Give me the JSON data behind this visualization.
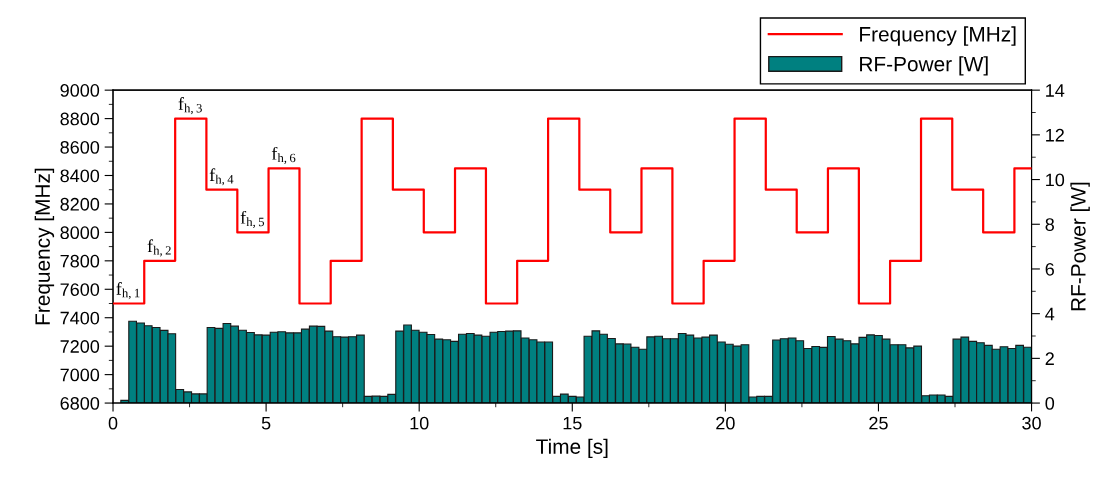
{
  "chart_data": {
    "type": "bar",
    "xlabel": "Time [s]",
    "ylabel": "Frequency [MHz]",
    "y2label": "RF-Power [W]",
    "xlim": [
      0,
      30
    ],
    "xticks": [
      0,
      5,
      10,
      15,
      20,
      25,
      30
    ],
    "ylim": [
      6800,
      9000
    ],
    "yticks": [
      6800,
      7000,
      7200,
      7400,
      7600,
      7800,
      8000,
      8200,
      8400,
      8600,
      8800,
      9000
    ],
    "y2lim": [
      0,
      14
    ],
    "y2ticks": [
      0,
      2,
      4,
      6,
      8,
      10,
      12,
      14
    ],
    "grid": false,
    "legend": "top right",
    "series": [
      {
        "name": "Frequency [MHz]",
        "type": "step",
        "color": "#ff0000",
        "axis": "y",
        "line_style": "solid",
        "x": [
          0,
          1.02,
          2.03,
          3.05,
          4.06,
          5.08,
          6.09,
          7.11,
          8.12,
          9.14,
          10.15,
          11.17,
          12.18,
          13.2,
          14.21,
          15.23,
          16.24,
          17.26,
          18.27,
          19.29,
          20.3,
          21.32,
          22.33,
          23.35,
          24.36,
          25.38,
          26.39,
          27.41,
          28.42,
          29.44,
          30
        ],
        "values": [
          7500,
          7800,
          8800,
          8300,
          8000,
          8450,
          7500,
          7800,
          8800,
          8300,
          8000,
          8450,
          7500,
          7800,
          8800,
          8300,
          8000,
          8450,
          7500,
          7800,
          8800,
          8300,
          8000,
          8450,
          7500,
          7800,
          8800,
          8300,
          8000,
          8450,
          8450
        ]
      },
      {
        "name": "RF-Power [W]",
        "color": "#008080",
        "axis": "y2",
        "x": [
          0.38,
          0.64,
          0.9,
          1.15,
          1.41,
          1.67,
          1.92,
          2.18,
          2.44,
          2.69,
          2.95,
          3.2,
          3.46,
          3.72,
          3.97,
          4.23,
          4.49,
          4.74,
          5.0,
          5.26,
          5.51,
          5.77,
          6.03,
          6.28,
          6.54,
          6.79,
          7.05,
          7.31,
          7.56,
          7.82,
          8.08,
          8.33,
          8.59,
          8.85,
          9.1,
          9.36,
          9.62,
          9.87,
          10.13,
          10.38,
          10.64,
          10.9,
          11.15,
          11.41,
          11.67,
          11.92,
          12.18,
          12.44,
          12.69,
          12.95,
          13.2,
          13.46,
          13.72,
          13.97,
          14.23,
          14.49,
          14.74,
          15.0,
          15.26,
          15.51,
          15.77,
          16.02,
          16.28,
          16.54,
          16.79,
          17.05,
          17.31,
          17.56,
          17.82,
          18.08,
          18.33,
          18.59,
          18.84,
          19.1,
          19.36,
          19.61,
          19.87,
          20.13,
          20.38,
          20.64,
          20.9,
          21.15,
          21.41,
          21.67,
          21.92,
          22.18,
          22.43,
          22.69,
          22.95,
          23.2,
          23.46,
          23.72,
          23.97,
          24.23,
          24.49,
          24.74,
          25.0,
          25.25,
          25.51,
          25.77,
          26.02,
          26.28,
          26.54,
          26.79,
          27.05,
          27.31,
          27.56,
          27.82,
          28.08,
          28.33,
          28.59,
          28.84,
          29.1,
          29.36,
          29.61,
          29.87
        ],
        "values": [
          0.12,
          3.66,
          3.58,
          3.46,
          3.38,
          3.25,
          3.1,
          0.61,
          0.5,
          0.41,
          0.41,
          3.38,
          3.34,
          3.56,
          3.44,
          3.26,
          3.16,
          3.05,
          3.04,
          3.17,
          3.19,
          3.14,
          3.14,
          3.31,
          3.44,
          3.43,
          3.22,
          2.97,
          2.95,
          2.97,
          3.04,
          0.3,
          0.31,
          0.3,
          0.39,
          3.22,
          3.49,
          3.26,
          3.17,
          3.07,
          2.86,
          2.83,
          2.76,
          3.08,
          3.11,
          3.04,
          2.99,
          3.17,
          3.2,
          3.22,
          3.23,
          2.91,
          2.83,
          2.73,
          2.73,
          0.3,
          0.4,
          0.3,
          0.27,
          2.99,
          3.23,
          3.08,
          2.89,
          2.65,
          2.64,
          2.5,
          2.41,
          2.96,
          2.99,
          2.88,
          2.88,
          3.11,
          3.04,
          2.91,
          2.95,
          3.04,
          2.73,
          2.63,
          2.55,
          2.61,
          0.27,
          0.3,
          0.3,
          2.82,
          2.88,
          2.91,
          2.79,
          2.44,
          2.53,
          2.49,
          2.98,
          2.86,
          2.79,
          2.65,
          2.94,
          3.05,
          3.02,
          2.86,
          2.61,
          2.61,
          2.47,
          2.55,
          0.33,
          0.36,
          0.36,
          0.3,
          2.86,
          2.95,
          2.76,
          2.7,
          2.58,
          2.41,
          2.52,
          2.44,
          2.58,
          2.5
        ]
      }
    ],
    "annotations": [
      {
        "text": "f$_{h,1}$",
        "x": 0,
        "y": 7500
      },
      {
        "text": "f$_{h,2}$",
        "x": 1.02,
        "y": 7800
      },
      {
        "text": "f$_{h,3}$",
        "x": 2.03,
        "y": 8800
      },
      {
        "text": "f$_{h,4}$",
        "x": 3.05,
        "y": 8300
      },
      {
        "text": "f$_{h,5}$",
        "x": 4.06,
        "y": 8000
      },
      {
        "text": "f$_{h,6}$",
        "x": 5.08,
        "y": 8450
      }
    ]
  }
}
